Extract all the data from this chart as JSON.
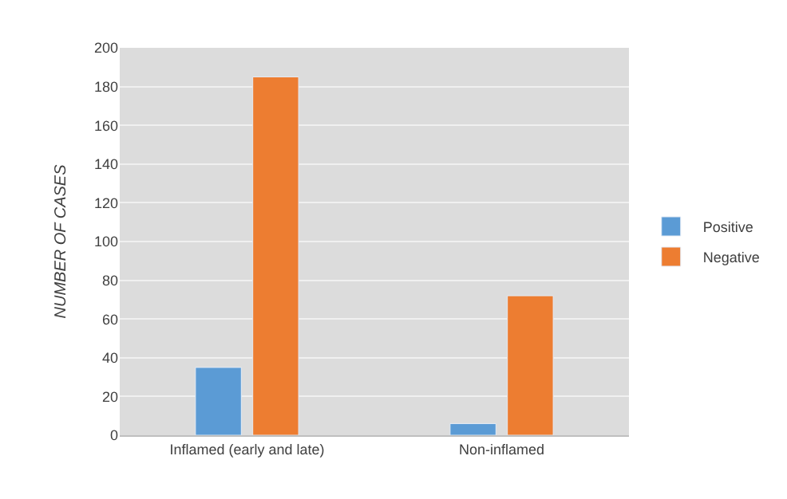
{
  "chart_data": {
    "type": "bar",
    "ylabel": "NUMBER OF CASES",
    "categories": [
      "Inflamed (early and late)",
      "Non-inflamed"
    ],
    "series": [
      {
        "name": "Positive",
        "color": "#5b9bd5",
        "values": [
          35,
          6
        ]
      },
      {
        "name": "Negative",
        "color": "#ed7d31",
        "values": [
          185,
          72
        ]
      }
    ],
    "ylim": [
      0,
      200
    ],
    "yticks": [
      0,
      20,
      40,
      60,
      80,
      100,
      120,
      140,
      160,
      180,
      200
    ],
    "grid": "y",
    "legend": "right"
  }
}
